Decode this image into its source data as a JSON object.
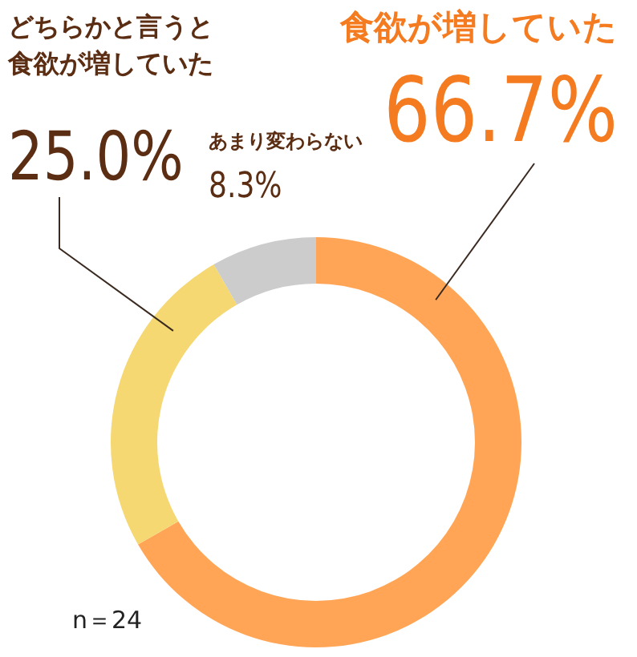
{
  "chart_data": {
    "type": "donut",
    "categories": [
      "食欲が増していた",
      "どちらかと言うと食欲が増していた",
      "あまり変わらない"
    ],
    "values": [
      66.7,
      25.0,
      8.3
    ],
    "value_labels": [
      "66.7%",
      "25.0%",
      "8.3%"
    ],
    "colors": [
      "#ffa555",
      "#f5d872",
      "#cccccc"
    ],
    "annotations": [
      "n＝24"
    ]
  }
}
